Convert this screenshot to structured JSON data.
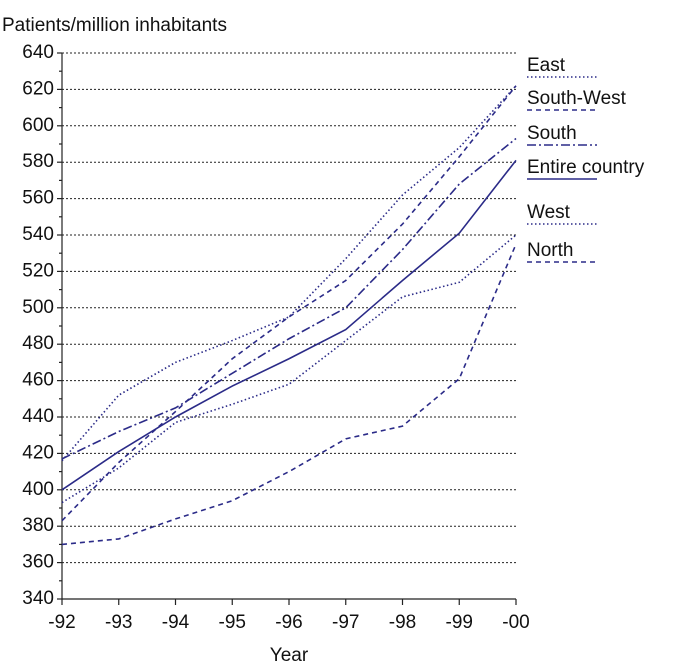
{
  "chart_data": {
    "type": "line",
    "title": "Patients/million inhabitants",
    "xlabel": "Year",
    "categories": [
      "-92",
      "-93",
      "-94",
      "-95",
      "-96",
      "-97",
      "-98",
      "-99",
      "-00"
    ],
    "ylim": [
      340,
      640
    ],
    "yticks": [
      340,
      360,
      380,
      400,
      420,
      440,
      460,
      480,
      500,
      520,
      540,
      560,
      580,
      600,
      620,
      640
    ],
    "grid": true,
    "legend": "right",
    "series": [
      {
        "name": "East",
        "color": "#2b2b88",
        "style": "dotted",
        "values": [
          416,
          452,
          470,
          482,
          495,
          527,
          562,
          588,
          622
        ]
      },
      {
        "name": "South-West",
        "color": "#2b2b88",
        "style": "dashed",
        "values": [
          383,
          415,
          443,
          472,
          495,
          515,
          546,
          583,
          622
        ]
      },
      {
        "name": "South",
        "color": "#2b2b88",
        "style": "dashdot",
        "values": [
          417,
          432,
          445,
          464,
          483,
          500,
          532,
          568,
          593
        ]
      },
      {
        "name": "Entire country",
        "color": "#2b2b88",
        "style": "solid",
        "values": [
          400,
          421,
          440,
          457,
          472,
          488,
          515,
          541,
          581
        ]
      },
      {
        "name": "West",
        "color": "#2b2b88",
        "style": "dotted",
        "values": [
          393,
          412,
          437,
          447,
          458,
          482,
          506,
          514,
          540
        ]
      },
      {
        "name": "North",
        "color": "#2b2b88",
        "style": "dashed",
        "values": [
          370,
          373,
          384,
          394,
          410,
          428,
          435,
          461,
          535
        ]
      }
    ]
  }
}
